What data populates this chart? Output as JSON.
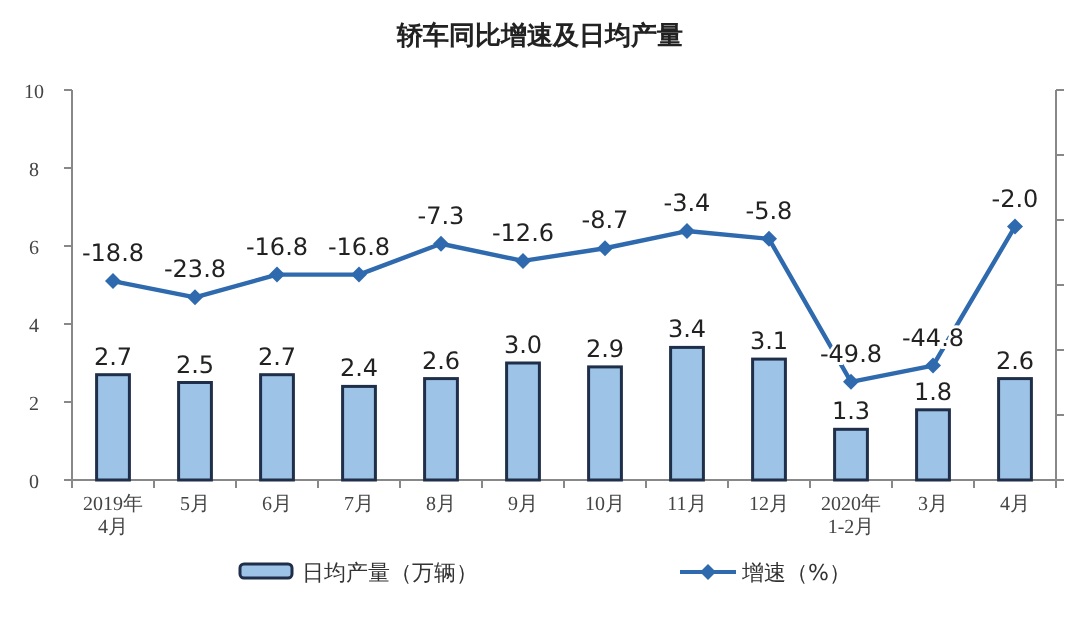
{
  "chart_data": {
    "type": "bar",
    "title": "轿车同比增速及日均产量",
    "categories": [
      "2019年\n4月",
      "5月",
      "6月",
      "7月",
      "8月",
      "9月",
      "10月",
      "11月",
      "12月",
      "2020年\n1-2月",
      "3月",
      "4月"
    ],
    "series": [
      {
        "name": "日均产量（万辆）",
        "color": "#9dc3e6",
        "values": [
          2.7,
          2.5,
          2.7,
          2.4,
          2.6,
          3.0,
          2.9,
          3.4,
          3.1,
          1.3,
          1.8,
          2.6
        ],
        "value_labels": [
          "2.7",
          "2.5",
          "2.7",
          "2.4",
          "2.6",
          "3.0",
          "2.9",
          "3.4",
          "3.1",
          "1.3",
          "1.8",
          "2.6"
        ]
      },
      {
        "name": "增速（%）",
        "type": "line",
        "axis": "y2",
        "color": "#2e6aad",
        "values": [
          -18.8,
          -23.8,
          -16.8,
          -16.8,
          -7.3,
          -12.6,
          -8.7,
          -3.4,
          -5.8,
          -49.8,
          -44.8,
          -2.0
        ],
        "value_labels": [
          "-18.8",
          "-23.8",
          "-16.8",
          "-16.8",
          "-7.3",
          "-12.6",
          "-8.7",
          "-3.4",
          "-5.8",
          "-49.8",
          "-44.8",
          "-2.0"
        ]
      }
    ],
    "ylim": [
      0,
      10
    ],
    "yticks": [
      0,
      2,
      4,
      6,
      8,
      10
    ],
    "y2lim": [
      -80,
      40
    ],
    "y2ticks": [
      {
        "value": -80,
        "label": null
      },
      {
        "value": -60,
        "label": null
      },
      {
        "value": -40,
        "label": null
      },
      {
        "value": -20,
        "label": null
      },
      {
        "value": 0,
        "label": null
      },
      {
        "value": 20,
        "label": null
      },
      {
        "value": 40,
        "label": null
      }
    ],
    "legend": "bottom",
    "marker": "diamond",
    "line_style": "solid",
    "grid": false
  }
}
